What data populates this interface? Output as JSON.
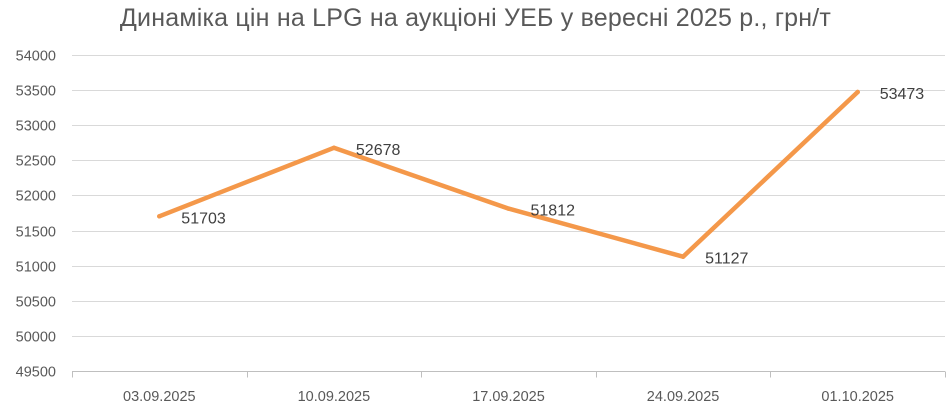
{
  "chart_data": {
    "type": "line",
    "title": "Динаміка цін на LPG на аукціоні УЕБ у вересні 2025 р., грн/т",
    "xlabel": "",
    "ylabel": "",
    "categories": [
      "03.09.2025",
      "10.09.2025",
      "17.09.2025",
      "24.09.2025",
      "01.10.2025"
    ],
    "series": [
      {
        "values": [
          51703,
          52678,
          51812,
          51127,
          53473
        ]
      }
    ],
    "data_labels": [
      "51703",
      "52678",
      "51812",
      "51127",
      "53473"
    ],
    "ylim": [
      49500,
      54000
    ],
    "y_ticks": [
      54000,
      53500,
      53000,
      52500,
      52000,
      51500,
      51000,
      50500,
      50000,
      49500
    ],
    "y_tick_labels": [
      "54000",
      "53500",
      "53000",
      "52500",
      "52000",
      "51500",
      "51000",
      "50500",
      "50000",
      "49500"
    ],
    "grid": "horizontal",
    "legend": "none",
    "colors": {
      "line": "#F4984A",
      "grid": "#D9D9D9",
      "axis": "#BFBFBF",
      "text": "#595959"
    }
  }
}
